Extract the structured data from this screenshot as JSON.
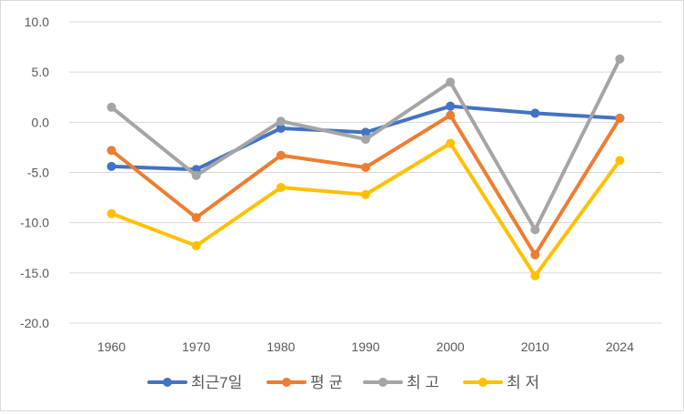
{
  "chart_data": {
    "type": "line",
    "categories": [
      "1960",
      "1970",
      "1980",
      "1990",
      "2000",
      "2010",
      "2024"
    ],
    "y_ticks": [
      "-20.0",
      "-15.0",
      "-10.0",
      "-5.0",
      "0.0",
      "5.0",
      "10.0"
    ],
    "ylim": [
      -20,
      10
    ],
    "grid": true,
    "legend_position": "bottom",
    "series": [
      {
        "name": "최근7일",
        "color": "#4472C4",
        "values": [
          -4.4,
          -4.7,
          -0.6,
          -1.0,
          1.6,
          0.9,
          0.4
        ]
      },
      {
        "name": "평 균",
        "color": "#ED7D31",
        "values": [
          -2.8,
          -9.5,
          -3.3,
          -4.5,
          0.7,
          -13.2,
          0.4
        ]
      },
      {
        "name": "최 고",
        "color": "#A5A5A5",
        "values": [
          1.5,
          -5.3,
          0.1,
          -1.7,
          4.0,
          -10.7,
          6.3
        ]
      },
      {
        "name": "최 저",
        "color": "#FFC000",
        "values": [
          -9.1,
          -12.3,
          -6.5,
          -7.2,
          -2.1,
          -15.3,
          -3.8
        ]
      }
    ]
  }
}
